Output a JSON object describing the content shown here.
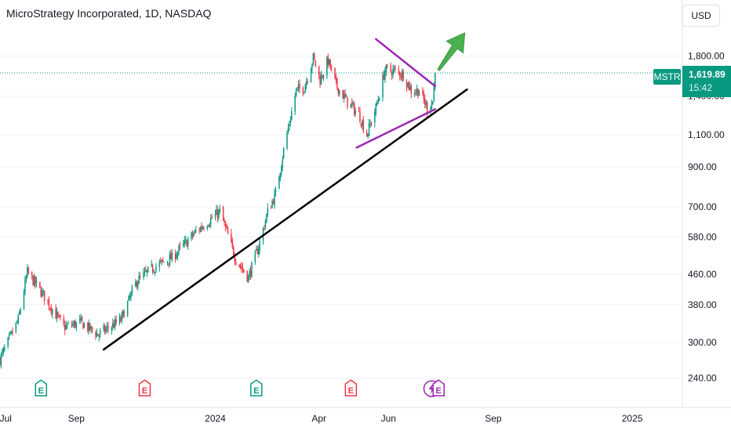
{
  "header": {
    "title": "MicroStrategy Incorporated, 1D, NASDAQ"
  },
  "price_scale": {
    "currency": "USD",
    "ticker": "MSTR",
    "last_price": "1,619.89",
    "countdown": "15:42"
  },
  "colors": {
    "up": "#089981",
    "down": "#f23645",
    "trendline": "#000000",
    "triangle": "#9c27b0",
    "arrow": "#4caf50",
    "earnings": "#089981",
    "earnings_down": "#f23645",
    "dividend": "#9c27b0"
  },
  "chart_data": {
    "type": "candlestick",
    "title": "MicroStrategy Incorporated, 1D, NASDAQ",
    "scale": "log",
    "ylim": [
      215,
      2100
    ],
    "x_range": [
      "2023-06-26",
      "2025-02-14"
    ],
    "y_ticks": [
      {
        "value": 1800,
        "label": "1,800.00"
      },
      {
        "value": 1400,
        "label": "1,400.00"
      },
      {
        "value": 1100,
        "label": "1,100.00"
      },
      {
        "value": 900,
        "label": "900.00"
      },
      {
        "value": 700,
        "label": "700.00"
      },
      {
        "value": 580,
        "label": "580.00"
      },
      {
        "value": 460,
        "label": "460.00"
      },
      {
        "value": 380,
        "label": "380.00"
      },
      {
        "value": 300,
        "label": "300.00"
      },
      {
        "value": 240,
        "label": "240.00"
      }
    ],
    "x_ticks": [
      {
        "date": "2023-07-01",
        "label": "Jul"
      },
      {
        "date": "2023-09-01",
        "label": "Sep"
      },
      {
        "date": "2024-01-01",
        "label": "2024"
      },
      {
        "date": "2024-04-01",
        "label": "Apr"
      },
      {
        "date": "2024-06-01",
        "label": "Jun"
      },
      {
        "date": "2024-09-01",
        "label": "Sep"
      },
      {
        "date": "2025-01-01",
        "label": "2025"
      }
    ],
    "last_price": 1619.89,
    "anchors": [
      {
        "date": "2023-06-26",
        "close": 270
      },
      {
        "date": "2023-07-12",
        "close": 345
      },
      {
        "date": "2023-07-20",
        "close": 465
      },
      {
        "date": "2023-08-04",
        "close": 400
      },
      {
        "date": "2023-08-21",
        "close": 330
      },
      {
        "date": "2023-09-05",
        "close": 340
      },
      {
        "date": "2023-09-20",
        "close": 315
      },
      {
        "date": "2023-10-10",
        "close": 345
      },
      {
        "date": "2023-10-24",
        "close": 440
      },
      {
        "date": "2023-11-08",
        "close": 480
      },
      {
        "date": "2023-11-24",
        "close": 510
      },
      {
        "date": "2023-12-15",
        "close": 600
      },
      {
        "date": "2024-01-05",
        "close": 680
      },
      {
        "date": "2024-01-19",
        "close": 505
      },
      {
        "date": "2024-01-30",
        "close": 450
      },
      {
        "date": "2024-02-09",
        "close": 560
      },
      {
        "date": "2024-02-16",
        "close": 680
      },
      {
        "date": "2024-02-23",
        "close": 760
      },
      {
        "date": "2024-03-01",
        "close": 1000
      },
      {
        "date": "2024-03-12",
        "close": 1450
      },
      {
        "date": "2024-03-19",
        "close": 1480
      },
      {
        "date": "2024-03-27",
        "close": 1780
      },
      {
        "date": "2024-04-02",
        "close": 1550
      },
      {
        "date": "2024-04-09",
        "close": 1750
      },
      {
        "date": "2024-04-16",
        "close": 1500
      },
      {
        "date": "2024-04-26",
        "close": 1350
      },
      {
        "date": "2024-05-06",
        "close": 1250
      },
      {
        "date": "2024-05-13",
        "close": 1100
      },
      {
        "date": "2024-05-21",
        "close": 1300
      },
      {
        "date": "2024-05-29",
        "close": 1650
      },
      {
        "date": "2024-06-07",
        "close": 1640
      },
      {
        "date": "2024-06-14",
        "close": 1600
      },
      {
        "date": "2024-06-21",
        "close": 1450
      },
      {
        "date": "2024-06-28",
        "close": 1450
      },
      {
        "date": "2024-07-05",
        "close": 1300
      },
      {
        "date": "2024-07-10",
        "close": 1360
      },
      {
        "date": "2024-07-12",
        "close": 1619.89
      }
    ],
    "drawings": {
      "trendline": {
        "from": {
          "date": "2023-09-25",
          "price": 287
        },
        "to": {
          "date": "2024-08-09",
          "price": 1460
        }
      },
      "triangle_upper": {
        "from": {
          "date": "2024-05-21",
          "price": 2000
        },
        "to": {
          "date": "2024-07-12",
          "price": 1490
        }
      },
      "triangle_lower": {
        "from": {
          "date": "2024-05-04",
          "price": 1015
        },
        "to": {
          "date": "2024-07-12",
          "price": 1290
        }
      },
      "breakout_arrow": {
        "from": {
          "date": "2024-07-15",
          "price": 1650
        },
        "to": {
          "date": "2024-08-07",
          "price": 2080
        }
      }
    },
    "events": [
      {
        "date": "2023-08-01",
        "type": "earnings",
        "label": "E",
        "color": "#089981"
      },
      {
        "date": "2023-10-31",
        "type": "earnings",
        "label": "E",
        "color": "#f23645"
      },
      {
        "date": "2024-02-06",
        "type": "earnings",
        "label": "E",
        "color": "#089981"
      },
      {
        "date": "2024-04-29",
        "type": "earnings",
        "label": "E",
        "color": "#f23645"
      },
      {
        "date": "2024-07-09",
        "type": "split",
        "label": "",
        "color": "#9c27b0"
      },
      {
        "date": "2024-07-15",
        "type": "earnings",
        "label": "E",
        "color": "#9c27b0"
      }
    ]
  }
}
